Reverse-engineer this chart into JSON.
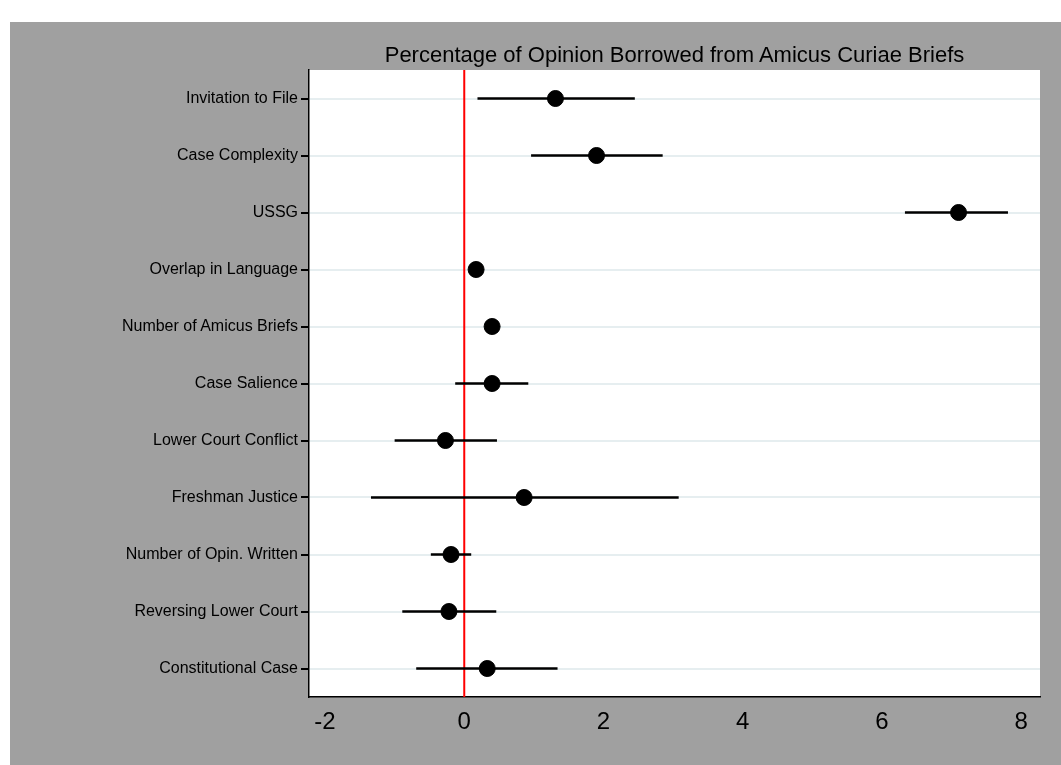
{
  "chart_data": {
    "type": "scatter",
    "title": "Percentage of Opinion Borrowed from Amicus Curiae Briefs",
    "orientation": "horizontal",
    "categories": [
      "Invitation to File",
      "Case Complexity",
      "USSG",
      "Overlap in Language",
      "Number of Amicus Briefs",
      "Case Salience",
      "Lower Court Conflict",
      "Freshman Justice",
      "Number of Opin. Written",
      "Reversing Lower Court",
      "Constitutional Case"
    ],
    "values": [
      1.31,
      1.9,
      7.1,
      0.17,
      0.4,
      0.4,
      -0.27,
      0.86,
      -0.19,
      -0.22,
      0.33
    ],
    "errors": [
      [
        0.19,
        2.45
      ],
      [
        0.96,
        2.85
      ],
      [
        6.33,
        7.81
      ],
      null,
      null,
      [
        -0.13,
        0.92
      ],
      [
        -1.0,
        0.47
      ],
      [
        -1.34,
        3.08
      ],
      [
        -0.48,
        0.1
      ],
      [
        -0.89,
        0.46
      ],
      [
        -0.69,
        1.34
      ]
    ],
    "color": "#000000",
    "marker": "circle",
    "xlim": [
      -2.23,
      8.27
    ],
    "xticks": [
      -2,
      0,
      2,
      4,
      6,
      8
    ],
    "ref_lines": [
      {
        "axis": "x",
        "value": 0,
        "color": "#ff0000"
      }
    ],
    "grid": "y"
  }
}
